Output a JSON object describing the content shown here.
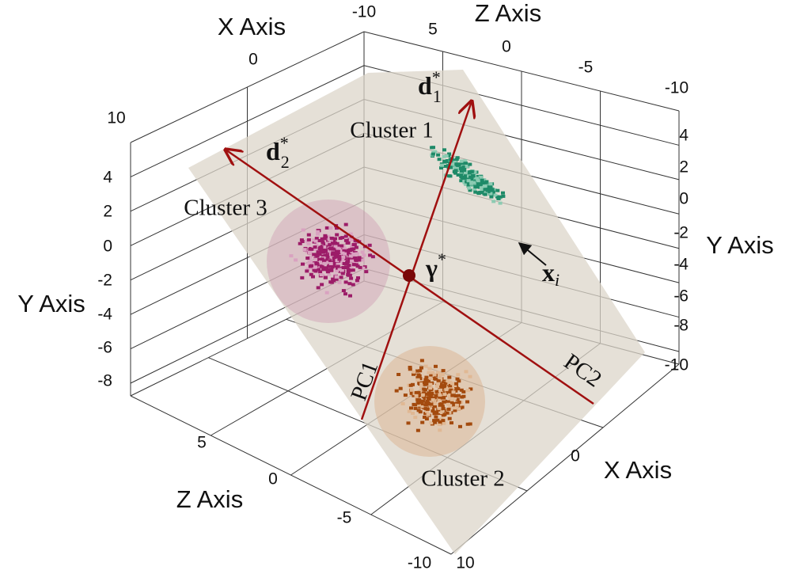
{
  "axes": {
    "x_top": {
      "title": "X Axis",
      "ticks": [
        "10",
        "0",
        "-10"
      ]
    },
    "z_top": {
      "title": "Z Axis",
      "ticks": [
        "5",
        "0",
        "-5",
        "-10"
      ]
    },
    "y_left": {
      "title": "Y Axis",
      "ticks": [
        "4",
        "2",
        "0",
        "-2",
        "-4",
        "-6",
        "-8"
      ]
    },
    "y_right": {
      "title": "Y Axis",
      "ticks": [
        "4",
        "2",
        "0",
        "-2",
        "-4",
        "-6",
        "-8",
        "-10"
      ]
    },
    "z_bottom": {
      "title": "Z Axis",
      "ticks": [
        "5",
        "0",
        "-5",
        "-10"
      ]
    },
    "x_bottom": {
      "title": "X Axis",
      "ticks": [
        "10",
        "0"
      ]
    }
  },
  "clusters": [
    "Cluster 1",
    "Cluster 2",
    "Cluster 3"
  ],
  "lines": [
    "PC1",
    "PC2"
  ],
  "symbols": {
    "d1": {
      "base": "d",
      "sub": "1",
      "sup": "*"
    },
    "d2": {
      "base": "d",
      "sub": "2",
      "sup": "*"
    },
    "gamma": {
      "base": "γ",
      "sup": "*"
    },
    "xi": {
      "base": "x",
      "sub": "i"
    }
  }
}
